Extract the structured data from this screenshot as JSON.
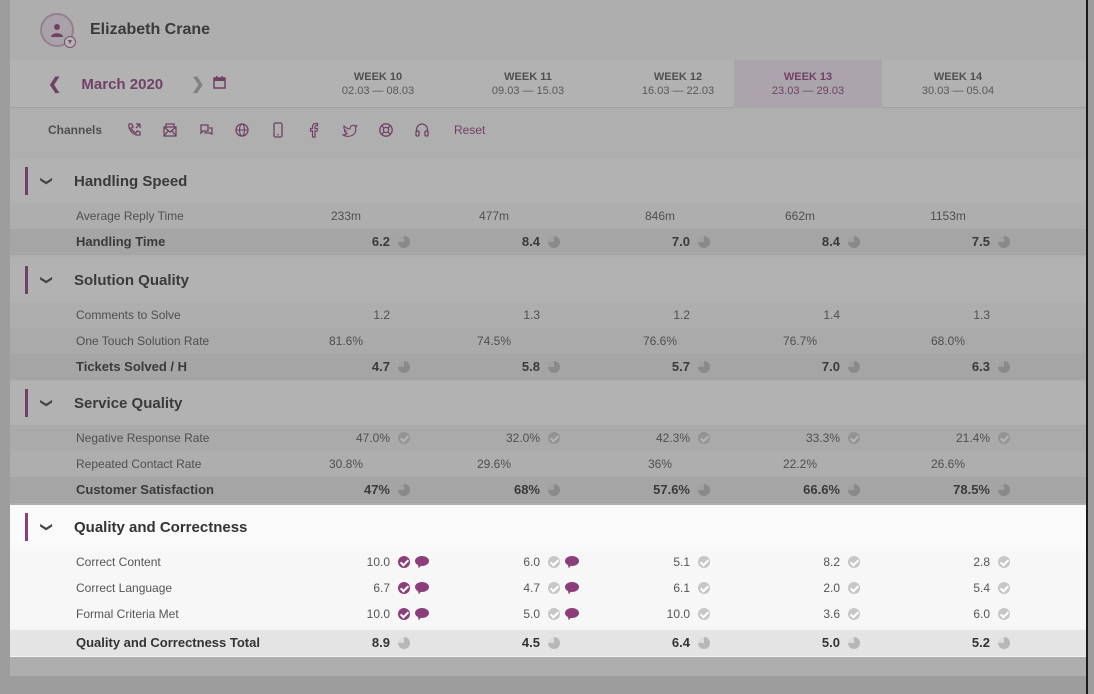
{
  "user": {
    "name": "Elizabeth Crane"
  },
  "nav": {
    "month": "March 2020",
    "prev_icon": "chevron-left-icon",
    "next_icon": "chevron-right-icon",
    "calendar_icon": "calendar-icon"
  },
  "weeks": [
    {
      "title": "WEEK 10",
      "range": "02.03 — 08.03",
      "active": false
    },
    {
      "title": "WEEK 11",
      "range": "09.03 — 15.03",
      "active": false
    },
    {
      "title": "WEEK 12",
      "range": "16.03 — 22.03",
      "active": false
    },
    {
      "title": "WEEK 13",
      "range": "23.03 — 29.03",
      "active": true
    },
    {
      "title": "WEEK 14",
      "range": "30.03 — 05.04",
      "active": false
    }
  ],
  "channels": {
    "label": "Channels",
    "icons": [
      "phone-icon",
      "email-icon",
      "chat-icon",
      "web-icon",
      "mobile-icon",
      "facebook-icon",
      "twitter-icon",
      "support-icon",
      "headset-icon"
    ],
    "reset_label": "Reset"
  },
  "sections": [
    {
      "title": "Handling Speed",
      "rows": [
        {
          "label": "Average Reply Time",
          "values": [
            "233m",
            "477m",
            "846m",
            "662m",
            "1153m"
          ],
          "type": "center"
        },
        {
          "label": "Handling Time",
          "values": [
            "6.2",
            "8.4",
            "7.0",
            "8.4",
            "7.5"
          ],
          "type": "total"
        }
      ]
    },
    {
      "title": "Solution Quality",
      "rows": [
        {
          "label": "Comments to Solve",
          "values": [
            "1.2",
            "1.3",
            "1.2",
            "1.4",
            "1.3"
          ],
          "type": "right"
        },
        {
          "label": "One Touch Solution Rate",
          "values": [
            "81.6%",
            "74.5%",
            "76.6%",
            "76.7%",
            "68.0%"
          ],
          "type": "center"
        },
        {
          "label": "Tickets Solved / H",
          "values": [
            "4.7",
            "5.8",
            "5.7",
            "7.0",
            "6.3"
          ],
          "type": "total"
        }
      ]
    },
    {
      "title": "Service Quality",
      "rows": [
        {
          "label": "Negative Response Rate",
          "values": [
            "47.0%",
            "32.0%",
            "42.3%",
            "33.3%",
            "21.4%"
          ],
          "type": "check"
        },
        {
          "label": "Repeated Contact Rate",
          "values": [
            "30.8%",
            "29.6%",
            "36%",
            "22.2%",
            "26.6%"
          ],
          "type": "center"
        },
        {
          "label": "Customer Satisfaction",
          "values": [
            "47%",
            "68%",
            "57.6%",
            "66.6%",
            "78.5%"
          ],
          "type": "total"
        }
      ]
    },
    {
      "title": "Quality and Correctness",
      "rows": [
        {
          "label": "Correct  Content",
          "values": [
            "10.0",
            "6.0",
            "5.1",
            "8.2",
            "2.8"
          ],
          "type": "qc",
          "active_check": [
            true,
            false,
            false,
            false,
            false
          ],
          "bubble": [
            true,
            true,
            false,
            false,
            false
          ]
        },
        {
          "label": "Correct Language",
          "values": [
            "6.7",
            "4.7",
            "6.1",
            "2.0",
            "5.4"
          ],
          "type": "qc",
          "active_check": [
            true,
            false,
            false,
            false,
            false
          ],
          "bubble": [
            true,
            true,
            false,
            false,
            false
          ]
        },
        {
          "label": "Formal Criteria Met",
          "values": [
            "10.0",
            "5.0",
            "10.0",
            "3.6",
            "6.0"
          ],
          "type": "qc",
          "active_check": [
            true,
            false,
            false,
            false,
            false
          ],
          "bubble": [
            true,
            true,
            false,
            false,
            false
          ]
        },
        {
          "label": "Quality and Correctness Total",
          "values": [
            "8.9",
            "4.5",
            "6.4",
            "5.0",
            "5.2"
          ],
          "type": "total"
        }
      ]
    }
  ],
  "colors": {
    "accent": "#8c3e7a",
    "muted_icon": "#c7c7c7"
  }
}
